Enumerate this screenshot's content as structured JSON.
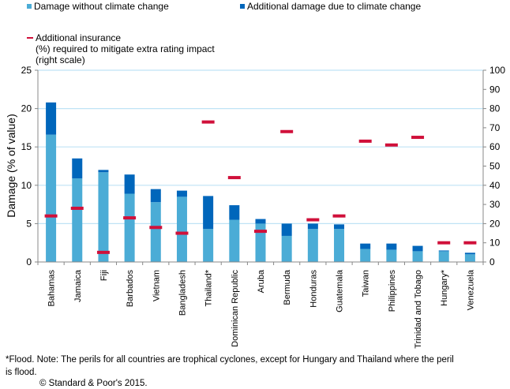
{
  "legend": {
    "series1": "Damage without climate change",
    "series2": "Additional damage due to climate change",
    "series3_line1": "Additional insurance",
    "series3_line2": "(%) required to mitigate extra rating impact",
    "series3_line3": "(right scale)"
  },
  "colors": {
    "base": "#4BACD6",
    "additional": "#0066BB",
    "insurance": "#D0103A",
    "grid": "#BFE3F5"
  },
  "footnote": {
    "line1": "*Flood. Note: The perils for all countries are trophical cyclones, except for  Hungary and Thailand where the peril",
    "line2": "is flood.",
    "copyright": "© Standard & Poor's 2015."
  },
  "chart_data": {
    "type": "bar",
    "stacked": true,
    "title": "",
    "ylabel": "Damage (% of value)",
    "y2label": "",
    "ylim": [
      0,
      25
    ],
    "y2lim": [
      0,
      100
    ],
    "yticks": [
      0,
      5,
      10,
      15,
      20,
      25
    ],
    "y2ticks": [
      0,
      10,
      20,
      30,
      40,
      50,
      60,
      70,
      80,
      90,
      100
    ],
    "grid": true,
    "legend_position": "top",
    "categories": [
      "Bahamas",
      "Jamaica",
      "Fiji",
      "Barbados",
      "Vietnam",
      "Bangladesh",
      "Thailand*",
      "Dominican Republic",
      "Aruba",
      "Bermuda",
      "Honduras",
      "Guatemala",
      "Taiwan",
      "Philippines",
      "Trinidad and Tobago",
      "Hungary*",
      "Venezuela"
    ],
    "series": [
      {
        "name": "Damage without climate change",
        "axis": "left",
        "type": "bar",
        "values": [
          16.6,
          10.9,
          11.7,
          8.9,
          7.8,
          8.5,
          4.3,
          5.5,
          5.0,
          3.4,
          4.3,
          4.3,
          1.7,
          1.6,
          1.4,
          1.4,
          1.0
        ]
      },
      {
        "name": "Additional damage due to climate change",
        "axis": "left",
        "type": "bar",
        "values": [
          4.2,
          2.6,
          0.3,
          2.5,
          1.7,
          0.8,
          4.3,
          1.9,
          0.6,
          1.6,
          0.7,
          0.6,
          0.7,
          0.8,
          0.7,
          0.1,
          0.2
        ]
      },
      {
        "name": "Additional insurance (%) required to mitigate extra rating impact (right scale)",
        "axis": "right",
        "type": "marker",
        "values": [
          24,
          28,
          5,
          23,
          18,
          15,
          73,
          44,
          16,
          68,
          22,
          24,
          63,
          61,
          65,
          10,
          10
        ]
      }
    ]
  }
}
